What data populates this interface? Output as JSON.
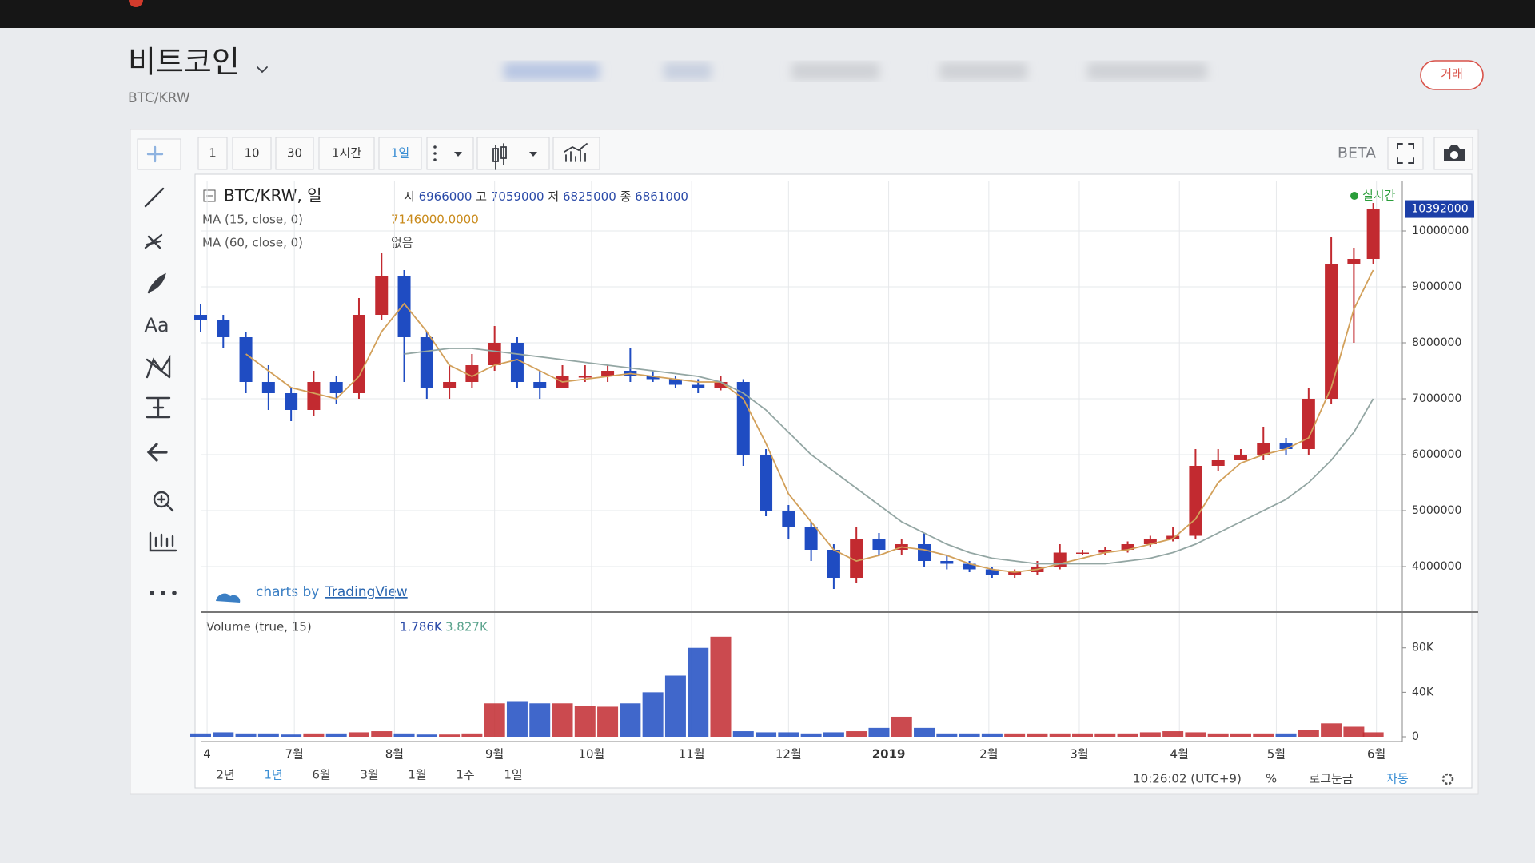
{
  "header": {
    "title": "비트코인",
    "pair": "BTC/KRW",
    "trade_button": "거래"
  },
  "toolbar": {
    "intervals": [
      "1",
      "10",
      "30",
      "1시간",
      "1일"
    ],
    "beta": "BETA"
  },
  "sidebar": {
    "text_tool": "Aa"
  },
  "branding": {
    "prefix": "charts by",
    "name": "TradingView"
  },
  "footer": {
    "ranges": [
      "2년",
      "1년",
      "6월",
      "3월",
      "1월",
      "1주",
      "1일"
    ],
    "time": "10:26:02 (UTC+9)",
    "percent": "%",
    "log": "로그눈금",
    "auto": "자동"
  },
  "chart_data": {
    "type": "candlestick",
    "title": "BTC/KRW, 일",
    "realtime": "실시간",
    "ohlc_legend": [
      {
        "label": "시",
        "value": 6966000
      },
      {
        "label": "고",
        "value": 7059000
      },
      {
        "label": "저",
        "value": 6825000
      },
      {
        "label": "종",
        "value": 6861000
      }
    ],
    "up_color": "#c22a30",
    "down_color": "#1f4cc2",
    "x": [
      0,
      7,
      14,
      21,
      28,
      35,
      42,
      49,
      56,
      63,
      70,
      77,
      84,
      91,
      98,
      105,
      112,
      119,
      126,
      133,
      140,
      147,
      154,
      161,
      168,
      175,
      182,
      189,
      196,
      203,
      210,
      217,
      224,
      231,
      238,
      245,
      252,
      259,
      266,
      273,
      280,
      287,
      294,
      301,
      308,
      315,
      322,
      329,
      336,
      343,
      350,
      357,
      363
    ],
    "open": [
      8500000,
      8400000,
      8100000,
      7300000,
      7100000,
      6800000,
      7300000,
      7100000,
      8500000,
      9200000,
      8100000,
      7200000,
      7300000,
      7600000,
      8000000,
      7300000,
      7200000,
      7400000,
      7400000,
      7500000,
      7400000,
      7350000,
      7250000,
      7200000,
      7300000,
      6000000,
      5000000,
      4700000,
      4300000,
      3800000,
      4500000,
      4300000,
      4400000,
      4100000,
      4050000,
      3950000,
      3850000,
      3900000,
      4000000,
      4250000,
      4250000,
      4300000,
      4400000,
      4500000,
      4550000,
      5800000,
      5900000,
      6000000,
      6200000,
      6100000,
      7000000,
      9400000,
      9500000
    ],
    "high": [
      8700000,
      8500000,
      8200000,
      7600000,
      7200000,
      7500000,
      7400000,
      8800000,
      9600000,
      9300000,
      8200000,
      7600000,
      7800000,
      8300000,
      8100000,
      7500000,
      7600000,
      7600000,
      7600000,
      7900000,
      7500000,
      7400000,
      7350000,
      7400000,
      7350000,
      6100000,
      5100000,
      4800000,
      4400000,
      4700000,
      4600000,
      4500000,
      4600000,
      4200000,
      4100000,
      4000000,
      3950000,
      4100000,
      4400000,
      4300000,
      4350000,
      4450000,
      4550000,
      4700000,
      6100000,
      6100000,
      6100000,
      6500000,
      6300000,
      7200000,
      9900000,
      9700000,
      10500000
    ],
    "low": [
      8200000,
      7900000,
      7100000,
      6800000,
      6600000,
      6700000,
      6900000,
      7000000,
      8400000,
      7300000,
      7000000,
      7000000,
      7200000,
      7500000,
      7200000,
      7000000,
      7200000,
      7300000,
      7300000,
      7300000,
      7300000,
      7200000,
      7100000,
      7150000,
      5800000,
      4900000,
      4500000,
      4100000,
      3600000,
      3700000,
      4200000,
      4200000,
      4000000,
      3950000,
      3900000,
      3800000,
      3800000,
      3850000,
      3950000,
      4200000,
      4200000,
      4250000,
      4350000,
      4450000,
      4500000,
      5700000,
      5900000,
      5900000,
      6000000,
      6000000,
      6900000,
      8000000,
      9400000
    ],
    "close": [
      8400000,
      8100000,
      7300000,
      7100000,
      6800000,
      7300000,
      7100000,
      8500000,
      9200000,
      8100000,
      7200000,
      7300000,
      7600000,
      8000000,
      7300000,
      7200000,
      7400000,
      7400000,
      7500000,
      7400000,
      7350000,
      7250000,
      7200000,
      7300000,
      6000000,
      5000000,
      4700000,
      4300000,
      3800000,
      4500000,
      4300000,
      4400000,
      4100000,
      4050000,
      3950000,
      3850000,
      3900000,
      4000000,
      4250000,
      4250000,
      4300000,
      4400000,
      4500000,
      4550000,
      5800000,
      5900000,
      6000000,
      6200000,
      6100000,
      7000000,
      9400000,
      9500000,
      10392000
    ],
    "overlays": [
      {
        "name": "MA (15, close, 0)",
        "color": "#d2a05a",
        "value": 7146000,
        "value_label": "7146000.0000",
        "values": [
          null,
          null,
          7800000,
          7500000,
          7200000,
          7100000,
          7000000,
          7400000,
          8200000,
          8700000,
          8200000,
          7600000,
          7400000,
          7600000,
          7700000,
          7500000,
          7300000,
          7350000,
          7400000,
          7450000,
          7400000,
          7350000,
          7300000,
          7300000,
          7000000,
          6200000,
          5300000,
          4800000,
          4300000,
          4100000,
          4200000,
          4350000,
          4300000,
          4200000,
          4050000,
          3950000,
          3900000,
          3950000,
          4050000,
          4150000,
          4250000,
          4300000,
          4400000,
          4500000,
          4850000,
          5500000,
          5850000,
          6000000,
          6100000,
          6300000,
          7200000,
          8600000,
          9300000
        ]
      },
      {
        "name": "MA (60, close, 0)",
        "color": "#93a6a3",
        "value_text": "없음",
        "values": [
          null,
          null,
          null,
          null,
          null,
          null,
          null,
          null,
          null,
          7800000,
          7850000,
          7900000,
          7900000,
          7850000,
          7800000,
          7750000,
          7700000,
          7650000,
          7600000,
          7550000,
          7500000,
          7450000,
          7400000,
          7300000,
          7100000,
          6800000,
          6400000,
          6000000,
          5700000,
          5400000,
          5100000,
          4800000,
          4600000,
          4400000,
          4250000,
          4150000,
          4100000,
          4050000,
          4050000,
          4050000,
          4050000,
          4100000,
          4150000,
          4250000,
          4400000,
          4600000,
          4800000,
          5000000,
          5200000,
          5500000,
          5900000,
          6400000,
          7000000
        ]
      }
    ],
    "last_price": 10392000,
    "xlim": [
      0,
      372
    ],
    "xticks": [
      {
        "value": 2,
        "label": "4"
      },
      {
        "value": 29,
        "label": "7월"
      },
      {
        "value": 60,
        "label": "8월"
      },
      {
        "value": 91,
        "label": "9월"
      },
      {
        "value": 121,
        "label": "10월"
      },
      {
        "value": 152,
        "label": "11월"
      },
      {
        "value": 182,
        "label": "12월"
      },
      2019,
      {
        "value": 244,
        "label": "2월"
      },
      {
        "value": 272,
        "label": "3월"
      },
      {
        "value": 303,
        "label": "4월"
      },
      {
        "value": 333,
        "label": "5월"
      },
      {
        "value": 364,
        "label": "6월"
      }
    ],
    "year_tick_value": 213,
    "ylim": [
      3200000,
      10900000
    ],
    "yticks": [
      4000000,
      5000000,
      6000000,
      7000000,
      8000000,
      9000000,
      10000000
    ],
    "grid": true,
    "volume": {
      "title": "Volume (true, 15)",
      "readouts": [
        {
          "value": 1786,
          "label": "1.786K",
          "color": "#2a4aa8"
        },
        {
          "value": 3827,
          "label": "3.827K",
          "color": "#5aa38c"
        }
      ],
      "values": [
        3000,
        4000,
        3000,
        3000,
        2000,
        3000,
        3000,
        4000,
        5000,
        3000,
        2000,
        2000,
        3000,
        30000,
        32000,
        30000,
        30000,
        28000,
        27000,
        30000,
        40000,
        55000,
        80000,
        90000,
        5000,
        4000,
        4000,
        3000,
        4000,
        5000,
        8000,
        18000,
        8000,
        3000,
        3000,
        3000,
        3000,
        3000,
        3000,
        3000,
        3000,
        3000,
        4000,
        5000,
        4000,
        3000,
        3000,
        3000,
        3000,
        6000,
        12000,
        9000,
        4000
      ],
      "ylim": [
        0,
        110000
      ],
      "yticks": [
        0,
        {
          "value": 40000,
          "label": "40K"
        },
        {
          "value": 80000,
          "label": "80K"
        }
      ]
    }
  }
}
